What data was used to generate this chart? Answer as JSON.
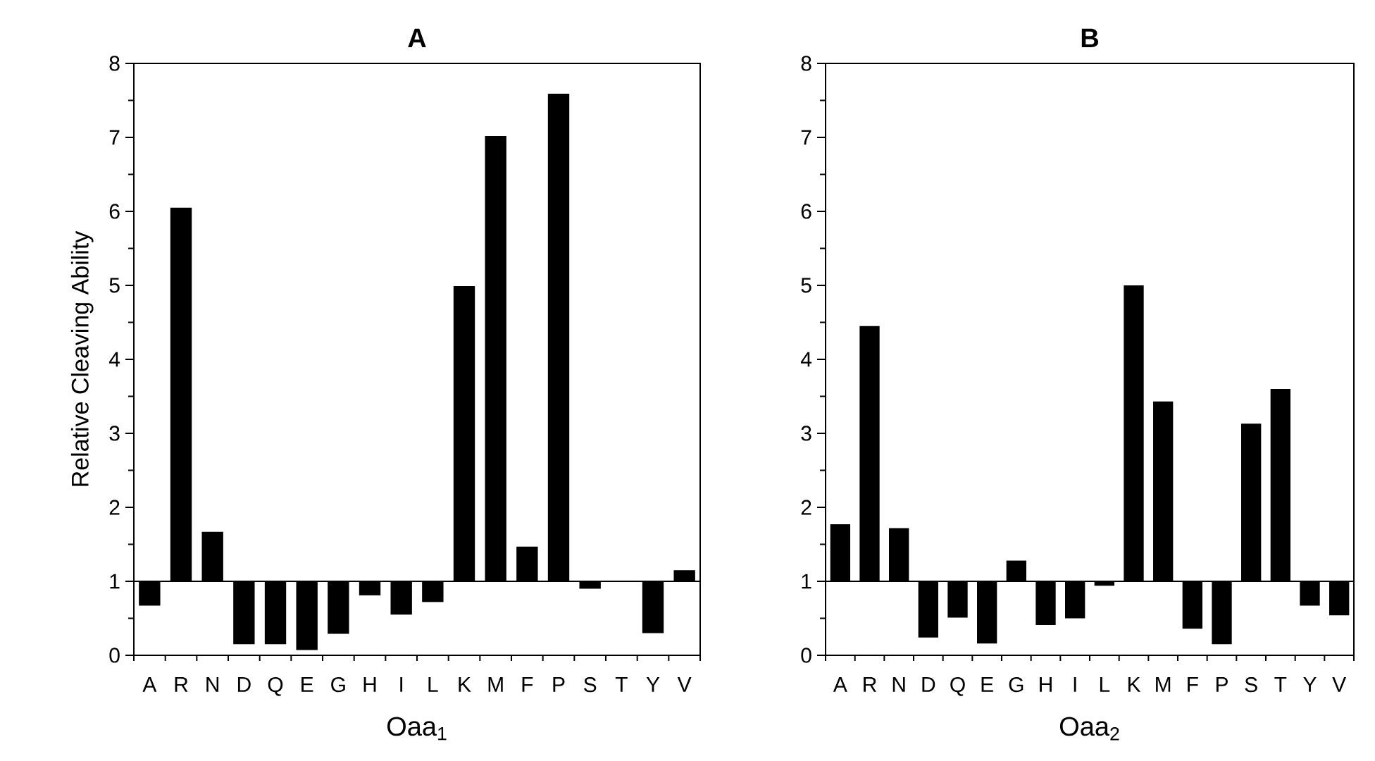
{
  "chart_data": [
    {
      "type": "bar",
      "title": "A",
      "xlabel": "Oaa$_{1}$",
      "ylabel": "Relative Cleaving Ability",
      "categories": [
        "A",
        "R",
        "N",
        "D",
        "Q",
        "E",
        "G",
        "H",
        "I",
        "L",
        "K",
        "M",
        "F",
        "P",
        "S",
        "T",
        "Y",
        "V"
      ],
      "base": [
        1,
        1,
        1,
        1,
        1,
        1,
        1,
        1,
        1,
        1,
        1,
        1,
        1,
        1,
        1,
        null,
        1,
        1
      ],
      "values": [
        -0.33,
        5.05,
        0.67,
        -0.85,
        -0.85,
        -0.93,
        -0.71,
        -0.19,
        -0.45,
        -0.28,
        3.99,
        6.02,
        0.47,
        6.59,
        -0.1,
        null,
        -0.7,
        0.15
      ],
      "color": "#000000",
      "ylim": [
        0,
        8
      ],
      "yticks": [
        0,
        1,
        2,
        3,
        4,
        5,
        6,
        7,
        8
      ],
      "ref_lines": [
        {
          "axis": "y",
          "value": 1
        }
      ]
    },
    {
      "type": "bar",
      "title": "B",
      "xlabel": "Oaa$_{2}$",
      "categories": [
        "A",
        "R",
        "N",
        "D",
        "Q",
        "E",
        "G",
        "H",
        "I",
        "L",
        "K",
        "M",
        "F",
        "P",
        "S",
        "T",
        "Y",
        "V"
      ],
      "base": [
        1,
        1,
        1,
        1,
        1,
        1,
        1,
        1,
        1,
        1,
        1,
        1,
        1,
        1,
        1,
        1,
        1,
        1
      ],
      "values": [
        0.77,
        3.45,
        0.72,
        -0.76,
        -0.49,
        -0.84,
        0.28,
        -0.59,
        -0.5,
        -0.06,
        4.0,
        2.43,
        -0.64,
        -0.85,
        2.13,
        2.6,
        -0.33,
        -0.46
      ],
      "color": "#000000",
      "ylim": [
        0,
        8
      ],
      "yticks": [
        0,
        1,
        2,
        3,
        4,
        5,
        6,
        7,
        8
      ],
      "ref_lines": [
        {
          "axis": "y",
          "value": 1
        }
      ]
    }
  ]
}
